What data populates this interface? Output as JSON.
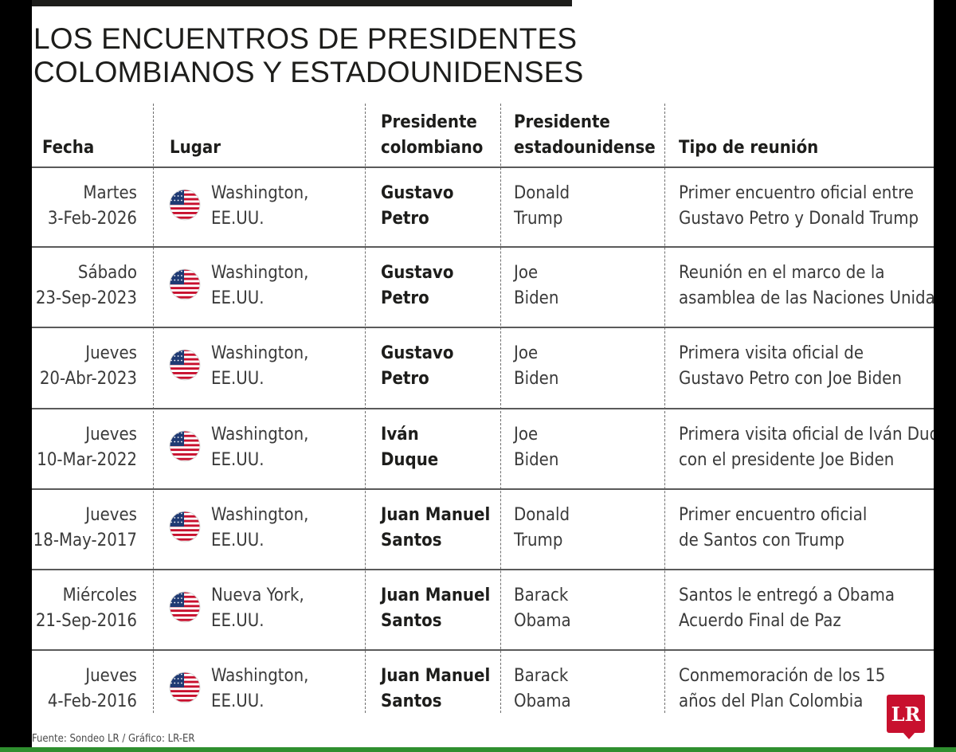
{
  "title": {
    "line1": "LOS ENCUENTROS DE PRESIDENTES",
    "line2": "COLOMBIANOS Y ESTADOUNIDENSES"
  },
  "headers": {
    "fecha": "Fecha",
    "lugar": "Lugar",
    "col_line1": "Presidente",
    "col_line2": "colombiano",
    "us_line1": "Presidente",
    "us_line2": "estadounidense",
    "tipo": "Tipo de reunión"
  },
  "flag_icon": "us-flag-icon",
  "rows": [
    {
      "day": "Martes",
      "date": "3-Feb-2026",
      "place1": "Washington,",
      "place2": "EE.UU.",
      "col1": "Gustavo",
      "col2": "Petro",
      "us1": "Donald",
      "us2": "Trump",
      "type1": "Primer encuentro oficial entre",
      "type2": "Gustavo Petro y Donald Trump"
    },
    {
      "day": "Sábado",
      "date": "23-Sep-2023",
      "place1": "Washington,",
      "place2": "EE.UU.",
      "col1": "Gustavo",
      "col2": "Petro",
      "us1": "Joe",
      "us2": "Biden",
      "type1": "Reunión en el marco de la",
      "type2": "asamblea de las Naciones Unidas"
    },
    {
      "day": "Jueves",
      "date": "20-Abr-2023",
      "place1": "Washington,",
      "place2": "EE.UU.",
      "col1": "Gustavo",
      "col2": "Petro",
      "us1": "Joe",
      "us2": "Biden",
      "type1": "Primera visita oficial de",
      "type2": "Gustavo Petro con Joe Biden"
    },
    {
      "day": "Jueves",
      "date": "10-Mar-2022",
      "place1": "Washington,",
      "place2": "EE.UU.",
      "col1": "Iván",
      "col2": "Duque",
      "us1": "Joe",
      "us2": "Biden",
      "type1": "Primera visita oficial de Iván Duque",
      "type2": "con el presidente Joe Biden"
    },
    {
      "day": "Jueves",
      "date": "18-May-2017",
      "place1": "Washington,",
      "place2": "EE.UU.",
      "col1": "Juan Manuel",
      "col2": "Santos",
      "us1": "Donald",
      "us2": "Trump",
      "type1": "Primer encuentro oficial",
      "type2": "de Santos con Trump"
    },
    {
      "day": "Miércoles",
      "date": "21-Sep-2016",
      "place1": "Nueva York,",
      "place2": "EE.UU.",
      "col1": "Juan Manuel",
      "col2": "Santos",
      "us1": "Barack",
      "us2": "Obama",
      "type1": "Santos le entregó a Obama",
      "type2": "Acuerdo Final de Paz"
    },
    {
      "day": "Jueves",
      "date": "4-Feb-2016",
      "place1": "Washington,",
      "place2": "EE.UU.",
      "col1": "Juan Manuel",
      "col2": "Santos",
      "us1": "Barack",
      "us2": "Obama",
      "type1": "Conmemoración de los 15",
      "type2": "años del Plan Colombia"
    }
  ],
  "source": "Fuente: Sondeo LR / Gráfico: LR-ER",
  "logo_text": "LR",
  "colors": {
    "text": "#1d1d1b",
    "flag_red": "#c8102e",
    "flag_blue": "#1f3a73",
    "logo_red": "#c8102e"
  }
}
